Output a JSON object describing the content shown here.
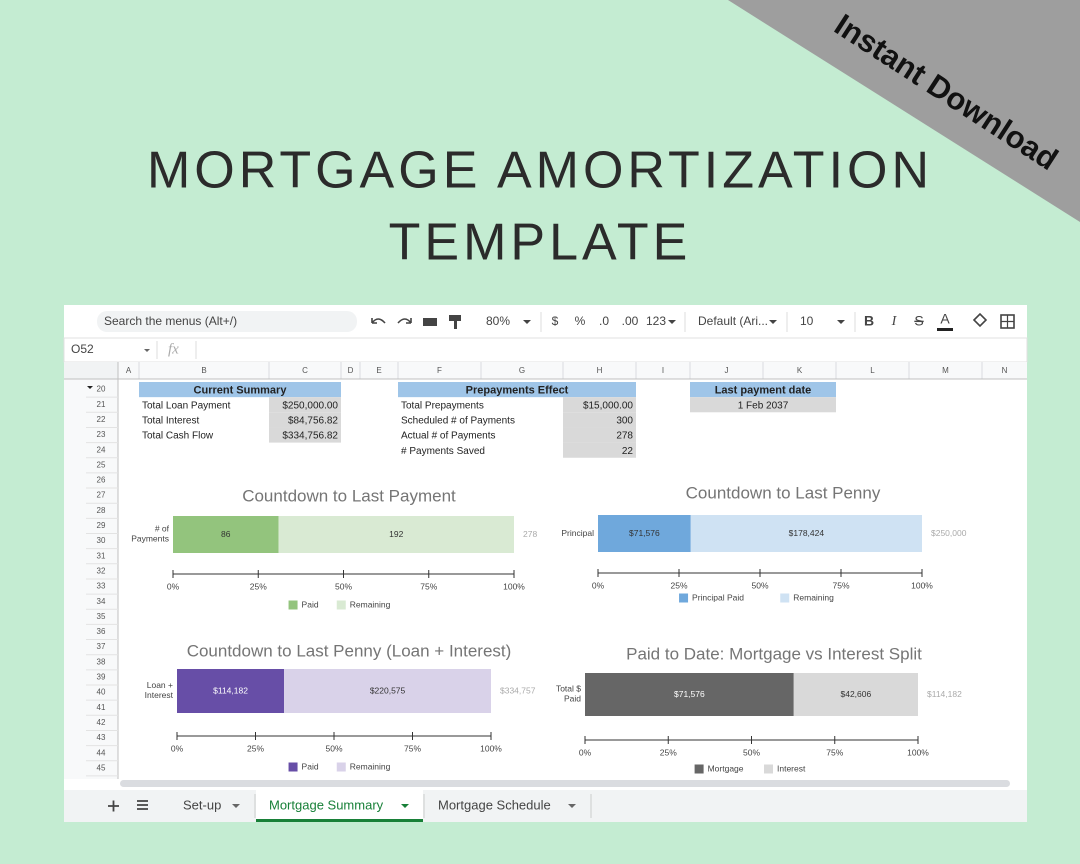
{
  "banner": "Instant Download",
  "title": [
    "MORTGAGE AMORTIZATION",
    "TEMPLATE"
  ],
  "toolbar": {
    "search": "Search the menus (Alt+/)",
    "zoom": "80%",
    "formats": [
      "$",
      "%",
      ".0",
      ".00",
      "123"
    ],
    "font": "Default (Ari...",
    "font_size": 10,
    "styles": [
      "B",
      "I",
      "S",
      "A"
    ]
  },
  "formula_bar": {
    "cell": "O52",
    "fx": "fx"
  },
  "columns": [
    "A",
    "B",
    "C",
    "D",
    "E",
    "F",
    "G",
    "H",
    "I",
    "J",
    "K",
    "L",
    "M",
    "N"
  ],
  "rows": [
    20,
    21,
    22,
    23,
    24,
    25,
    26,
    27,
    28,
    29,
    30,
    31,
    32,
    33,
    34,
    35,
    36,
    37,
    38,
    39,
    40,
    41,
    42,
    43,
    44,
    45
  ],
  "tables": [
    {
      "header": "Current Summary",
      "rows": [
        [
          "Total Loan Payment",
          "$250,000.00"
        ],
        [
          "Total Interest",
          "$84,756.82"
        ],
        [
          "Total Cash Flow",
          "$334,756.82"
        ]
      ]
    },
    {
      "header": "Prepayments Effect",
      "rows": [
        [
          "Total Prepayments",
          "$15,000.00"
        ],
        [
          "Scheduled # of Payments",
          300
        ],
        [
          "Actual # of Payments",
          278
        ],
        [
          "# Payments Saved",
          22
        ]
      ]
    },
    {
      "header": "Last payment date",
      "rows": [
        [
          "1 Feb 2037"
        ]
      ]
    }
  ],
  "tabs": [
    "Set-up",
    "Mortgage Summary",
    "Mortgage Schedule"
  ],
  "active_tab": 1,
  "chart_data": [
    {
      "type": "bar",
      "orientation": "horizontal",
      "stacked": "percent",
      "title": "Countdown to Last Payment",
      "categories": [
        "# of Payments"
      ],
      "series": [
        {
          "name": "Paid",
          "color": "#93c47d",
          "values": [
            86
          ]
        },
        {
          "name": "Remaining",
          "color": "#d9ead3",
          "values": [
            192
          ]
        }
      ],
      "total": 278,
      "xlim": [
        0,
        100
      ],
      "xticks": [
        {
          "value": 0,
          "label": "0%"
        },
        {
          "value": 25,
          "label": "25%"
        },
        {
          "value": 50,
          "label": "50%"
        },
        {
          "value": 75,
          "label": "75%"
        },
        {
          "value": 100,
          "label": "100%"
        }
      ],
      "legend": "bottom"
    },
    {
      "type": "bar",
      "orientation": "horizontal",
      "stacked": "percent",
      "title": "Countdown to Last Penny",
      "categories": [
        "Principal"
      ],
      "series": [
        {
          "name": "Principal Paid",
          "color": "#6fa8dc",
          "values": [
            71576
          ],
          "value_labels": [
            "$71,576"
          ]
        },
        {
          "name": "Remaining",
          "color": "#cfe2f3",
          "values": [
            178424
          ],
          "value_labels": [
            "$178,424"
          ]
        }
      ],
      "total": 250000,
      "total_label": "$250,000",
      "xlim": [
        0,
        100
      ],
      "xticks": [
        {
          "value": 0,
          "label": "0%"
        },
        {
          "value": 25,
          "label": "25%"
        },
        {
          "value": 50,
          "label": "50%"
        },
        {
          "value": 75,
          "label": "75%"
        },
        {
          "value": 100,
          "label": "100%"
        }
      ],
      "legend": "bottom"
    },
    {
      "type": "bar",
      "orientation": "horizontal",
      "stacked": "percent",
      "title": "Countdown to Last Penny (Loan + Interest)",
      "categories": [
        "Loan + Interest"
      ],
      "series": [
        {
          "name": "Paid",
          "color": "#674ea7",
          "values": [
            114182
          ],
          "value_labels": [
            "$114,182"
          ]
        },
        {
          "name": "Remaining",
          "color": "#d9d2e9",
          "values": [
            220575
          ],
          "value_labels": [
            "$220,575"
          ]
        }
      ],
      "total": 334757,
      "total_label": "$334,757",
      "xlim": [
        0,
        100
      ],
      "xticks": [
        {
          "value": 0,
          "label": "0%"
        },
        {
          "value": 25,
          "label": "25%"
        },
        {
          "value": 50,
          "label": "50%"
        },
        {
          "value": 75,
          "label": "75%"
        },
        {
          "value": 100,
          "label": "100%"
        }
      ],
      "legend": "bottom"
    },
    {
      "type": "bar",
      "orientation": "horizontal",
      "stacked": "percent",
      "title": "Paid to Date: Mortgage vs Interest Split",
      "categories": [
        "Total $ Paid"
      ],
      "series": [
        {
          "name": "Mortgage",
          "color": "#666666",
          "values": [
            71576
          ],
          "value_labels": [
            "$71,576"
          ]
        },
        {
          "name": "Interest",
          "color": "#d9d9d9",
          "values": [
            42606
          ],
          "value_labels": [
            "$42,606"
          ]
        }
      ],
      "total": 114182,
      "total_label": "$114,182",
      "xlim": [
        0,
        100
      ],
      "xticks": [
        {
          "value": 0,
          "label": "0%"
        },
        {
          "value": 25,
          "label": "25%"
        },
        {
          "value": 50,
          "label": "50%"
        },
        {
          "value": 75,
          "label": "75%"
        },
        {
          "value": 100,
          "label": "100%"
        }
      ],
      "legend": "bottom"
    }
  ]
}
